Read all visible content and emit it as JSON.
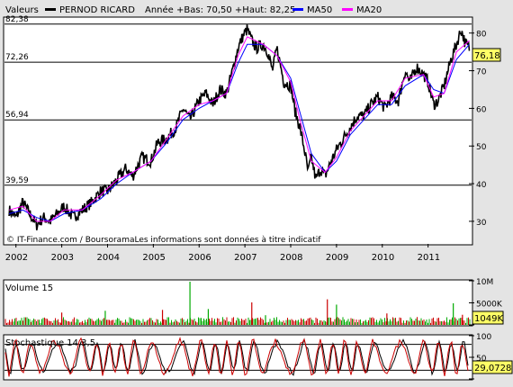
{
  "header": {
    "valeurs_label": "Valeurs",
    "instrument": "PERNOD RICARD",
    "range_text": "Année +Bas: 70,50 +Haut: 82,25",
    "ma50_label": "MA50",
    "ma20_label": "MA20"
  },
  "copyright": "© IT-Finance.com / BoursoramaLes informations sont données à titre indicatif",
  "colors": {
    "price": "#000000",
    "ma50": "#0000ff",
    "ma20": "#ff00ff",
    "volume_up": "#00aa00",
    "volume_down": "#cc0000",
    "stoch": "#cc0000",
    "last_price_box": "#ffff66",
    "background": "#ffffff",
    "frame": "#e4e4e4"
  },
  "chart_data": [
    {
      "type": "line",
      "name": "price",
      "title": "PERNOD RICARD",
      "ylim": [
        24,
        84
      ],
      "xlim": [
        2001.75,
        2011.95
      ],
      "right_ticks": [
        "30",
        "40",
        "50",
        "60",
        "70",
        "80"
      ],
      "right_tick_values": [
        30,
        40,
        50,
        60,
        70,
        80
      ],
      "left_levels": [
        {
          "value": 82.38,
          "label": "82,38"
        },
        {
          "value": 72.26,
          "label": "72,26"
        },
        {
          "value": 56.94,
          "label": "56,94"
        },
        {
          "value": 39.59,
          "label": "39,59"
        }
      ],
      "x_labels": [
        "2002",
        "2003",
        "2004",
        "2005",
        "2006",
        "2007",
        "2008",
        "2009",
        "2010",
        "2011"
      ],
      "last_value": "76,18",
      "series": [
        {
          "name": "PERNOD RICARD",
          "color": "#000000",
          "points": [
            [
              2001.85,
              33
            ],
            [
              2002.0,
              31
            ],
            [
              2002.15,
              35
            ],
            [
              2002.3,
              32
            ],
            [
              2002.45,
              29
            ],
            [
              2002.6,
              31
            ],
            [
              2002.75,
              30
            ],
            [
              2002.9,
              32
            ],
            [
              2003.05,
              34
            ],
            [
              2003.25,
              31
            ],
            [
              2003.45,
              33
            ],
            [
              2003.65,
              35
            ],
            [
              2003.85,
              38
            ],
            [
              2004.0,
              38
            ],
            [
              2004.2,
              41
            ],
            [
              2004.4,
              44
            ],
            [
              2004.55,
              42
            ],
            [
              2004.75,
              47
            ],
            [
              2004.95,
              46
            ],
            [
              2005.1,
              51
            ],
            [
              2005.3,
              52
            ],
            [
              2005.5,
              55
            ],
            [
              2005.65,
              60
            ],
            [
              2005.8,
              57
            ],
            [
              2006.0,
              62
            ],
            [
              2006.15,
              64
            ],
            [
              2006.3,
              61
            ],
            [
              2006.45,
              65
            ],
            [
              2006.6,
              64
            ],
            [
              2006.75,
              71
            ],
            [
              2006.85,
              76
            ],
            [
              2006.95,
              79
            ],
            [
              2007.05,
              81
            ],
            [
              2007.15,
              78
            ],
            [
              2007.25,
              76
            ],
            [
              2007.4,
              77
            ],
            [
              2007.5,
              75
            ],
            [
              2007.6,
              70
            ],
            [
              2007.7,
              76
            ],
            [
              2007.85,
              67
            ],
            [
              2008.0,
              66
            ],
            [
              2008.1,
              59
            ],
            [
              2008.2,
              55
            ],
            [
              2008.3,
              49
            ],
            [
              2008.38,
              43
            ],
            [
              2008.45,
              47
            ],
            [
              2008.55,
              41
            ],
            [
              2008.65,
              44
            ],
            [
              2008.75,
              42
            ],
            [
              2008.85,
              45
            ],
            [
              2009.0,
              49
            ],
            [
              2009.15,
              52
            ],
            [
              2009.3,
              55
            ],
            [
              2009.45,
              58
            ],
            [
              2009.6,
              58
            ],
            [
              2009.75,
              61
            ],
            [
              2009.9,
              63
            ],
            [
              2010.05,
              60
            ],
            [
              2010.2,
              63
            ],
            [
              2010.35,
              62
            ],
            [
              2010.5,
              70
            ],
            [
              2010.6,
              67
            ],
            [
              2010.75,
              71
            ],
            [
              2010.9,
              69
            ],
            [
              2011.0,
              67
            ],
            [
              2011.12,
              61
            ],
            [
              2011.22,
              62
            ],
            [
              2011.35,
              66
            ],
            [
              2011.5,
              73
            ],
            [
              2011.62,
              77
            ],
            [
              2011.72,
              81
            ],
            [
              2011.82,
              77
            ],
            [
              2011.9,
              76
            ]
          ]
        },
        {
          "name": "MA50",
          "color": "#0000ff",
          "points": [
            [
              2001.85,
              32
            ],
            [
              2002.15,
              33
            ],
            [
              2002.45,
              31
            ],
            [
              2002.75,
              30
            ],
            [
              2003.05,
              32
            ],
            [
              2003.45,
              33
            ],
            [
              2003.85,
              36
            ],
            [
              2004.2,
              40
            ],
            [
              2004.55,
              43
            ],
            [
              2004.95,
              46
            ],
            [
              2005.3,
              51
            ],
            [
              2005.65,
              57
            ],
            [
              2006.0,
              60
            ],
            [
              2006.3,
              62
            ],
            [
              2006.6,
              64
            ],
            [
              2006.85,
              72
            ],
            [
              2007.05,
              77
            ],
            [
              2007.4,
              77
            ],
            [
              2007.7,
              74
            ],
            [
              2008.0,
              68
            ],
            [
              2008.2,
              59
            ],
            [
              2008.45,
              48
            ],
            [
              2008.75,
              43
            ],
            [
              2009.0,
              46
            ],
            [
              2009.3,
              53
            ],
            [
              2009.6,
              57
            ],
            [
              2009.9,
              61
            ],
            [
              2010.2,
              61
            ],
            [
              2010.5,
              66
            ],
            [
              2010.9,
              69
            ],
            [
              2011.12,
              65
            ],
            [
              2011.35,
              64
            ],
            [
              2011.62,
              73
            ],
            [
              2011.9,
              77
            ]
          ]
        },
        {
          "name": "MA20",
          "color": "#ff00ff",
          "points": [
            [
              2001.85,
              33
            ],
            [
              2002.15,
              34
            ],
            [
              2002.45,
              30
            ],
            [
              2002.75,
              30
            ],
            [
              2003.05,
              33
            ],
            [
              2003.45,
              33
            ],
            [
              2003.85,
              37
            ],
            [
              2004.2,
              41
            ],
            [
              2004.55,
              43
            ],
            [
              2004.95,
              46
            ],
            [
              2005.3,
              52
            ],
            [
              2005.65,
              58
            ],
            [
              2006.0,
              61
            ],
            [
              2006.3,
              62
            ],
            [
              2006.6,
              64
            ],
            [
              2006.85,
              74
            ],
            [
              2007.05,
              79
            ],
            [
              2007.4,
              77
            ],
            [
              2007.7,
              74
            ],
            [
              2008.0,
              67
            ],
            [
              2008.2,
              57
            ],
            [
              2008.45,
              46
            ],
            [
              2008.75,
              43
            ],
            [
              2009.0,
              47
            ],
            [
              2009.3,
              54
            ],
            [
              2009.6,
              58
            ],
            [
              2009.9,
              62
            ],
            [
              2010.2,
              62
            ],
            [
              2010.5,
              68
            ],
            [
              2010.9,
              69
            ],
            [
              2011.12,
              63
            ],
            [
              2011.35,
              64
            ],
            [
              2011.62,
              75
            ],
            [
              2011.9,
              78
            ]
          ]
        }
      ]
    },
    {
      "type": "bar",
      "name": "volume",
      "title": "Volume 15",
      "ylim": [
        0,
        10000
      ],
      "right_ticks": [
        "10M",
        "5000K",
        "0"
      ],
      "right_tick_values": [
        10000,
        5000,
        0
      ],
      "last_value": "1049K",
      "typical_value": 1049,
      "spikes": [
        [
          2003.95,
          3200
        ],
        [
          2003.0,
          2800
        ],
        [
          2005.8,
          9800
        ],
        [
          2005.2,
          3400
        ],
        [
          2006.2,
          3600
        ],
        [
          2007.15,
          5100
        ],
        [
          2007.45,
          2200
        ],
        [
          2008.8,
          5800
        ],
        [
          2009.0,
          4600
        ],
        [
          2010.1,
          2600
        ],
        [
          2011.55,
          4900
        ],
        [
          2011.75,
          2300
        ]
      ]
    },
    {
      "type": "line",
      "name": "stochastic",
      "title": "Stochastique 14,3,5",
      "ylim": [
        0,
        100
      ],
      "right_ticks": [
        "100",
        "50",
        "0"
      ],
      "right_tick_values": [
        100,
        50,
        0
      ],
      "reference_lines": [
        20,
        80
      ],
      "last_value": "29,0728"
    }
  ]
}
